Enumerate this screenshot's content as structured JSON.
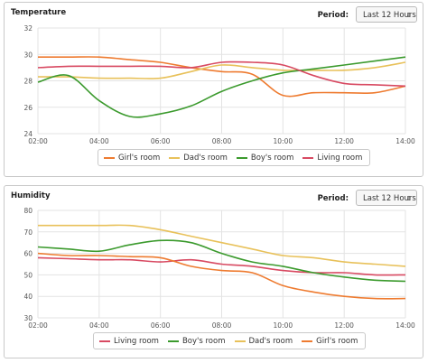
{
  "chart_data": [
    {
      "type": "line",
      "title": "Temperature",
      "period_label": "Period:",
      "period_value": "Last 12 Hours",
      "x": [
        2,
        3,
        4,
        5,
        6,
        7,
        8,
        9,
        10,
        11,
        12,
        13,
        14
      ],
      "x_ticks": [
        2,
        4,
        6,
        8,
        10,
        12,
        14
      ],
      "x_tick_labels": [
        "02:00",
        "04:00",
        "06:00",
        "08:00",
        "10:00",
        "12:00",
        "14:00"
      ],
      "ylim": [
        24,
        32
      ],
      "y_ticks": [
        24,
        26,
        28,
        30,
        32
      ],
      "grid": true,
      "legend": "bottom-center",
      "series": [
        {
          "name": "Girl's room",
          "color": "#ee7b30",
          "values": [
            29.8,
            29.8,
            29.8,
            29.6,
            29.4,
            29.0,
            28.7,
            28.5,
            26.9,
            27.1,
            27.1,
            27.1,
            27.6
          ]
        },
        {
          "name": "Dad's room",
          "color": "#e8c15a",
          "values": [
            28.3,
            28.3,
            28.2,
            28.2,
            28.2,
            28.7,
            29.2,
            29.0,
            28.8,
            28.8,
            28.8,
            29.0,
            29.4
          ]
        },
        {
          "name": "Boy's room",
          "color": "#3b9a2d",
          "values": [
            27.9,
            28.4,
            26.5,
            25.3,
            25.5,
            26.1,
            27.2,
            28.0,
            28.6,
            28.9,
            29.2,
            29.5,
            29.8
          ]
        },
        {
          "name": "Living room",
          "color": "#d84a62",
          "values": [
            29.0,
            29.1,
            29.1,
            29.1,
            29.1,
            29.0,
            29.4,
            29.4,
            29.2,
            28.4,
            27.8,
            27.7,
            27.6
          ]
        }
      ]
    },
    {
      "type": "line",
      "title": "Humidity",
      "period_label": "Period:",
      "period_value": "Last 12 Hours",
      "x": [
        2,
        3,
        4,
        5,
        6,
        7,
        8,
        9,
        10,
        11,
        12,
        13,
        14
      ],
      "x_ticks": [
        2,
        4,
        6,
        8,
        10,
        12,
        14
      ],
      "x_tick_labels": [
        "02:00",
        "04:00",
        "06:00",
        "08:00",
        "10:00",
        "12:00",
        "14:00"
      ],
      "ylim": [
        30,
        80
      ],
      "y_ticks": [
        30,
        40,
        50,
        60,
        70,
        80
      ],
      "grid": true,
      "legend": "bottom-center",
      "series": [
        {
          "name": "Living room",
          "color": "#d84a62",
          "values": [
            58,
            57.5,
            57,
            57,
            56,
            57,
            55,
            54,
            52,
            51,
            51,
            50,
            50
          ]
        },
        {
          "name": "Boy's room",
          "color": "#3b9a2d",
          "values": [
            63,
            62,
            61,
            64,
            66,
            65,
            60,
            56,
            54,
            51,
            49,
            47.5,
            47
          ]
        },
        {
          "name": "Dad's room",
          "color": "#e8c15a",
          "values": [
            73,
            73,
            73,
            73,
            71,
            68,
            65,
            62,
            59,
            58,
            56,
            55,
            54
          ]
        },
        {
          "name": "Girl's room",
          "color": "#ee7b30",
          "values": [
            60,
            59,
            59,
            58.5,
            58,
            54,
            52,
            51,
            45,
            42,
            40,
            39,
            39
          ]
        }
      ]
    }
  ]
}
